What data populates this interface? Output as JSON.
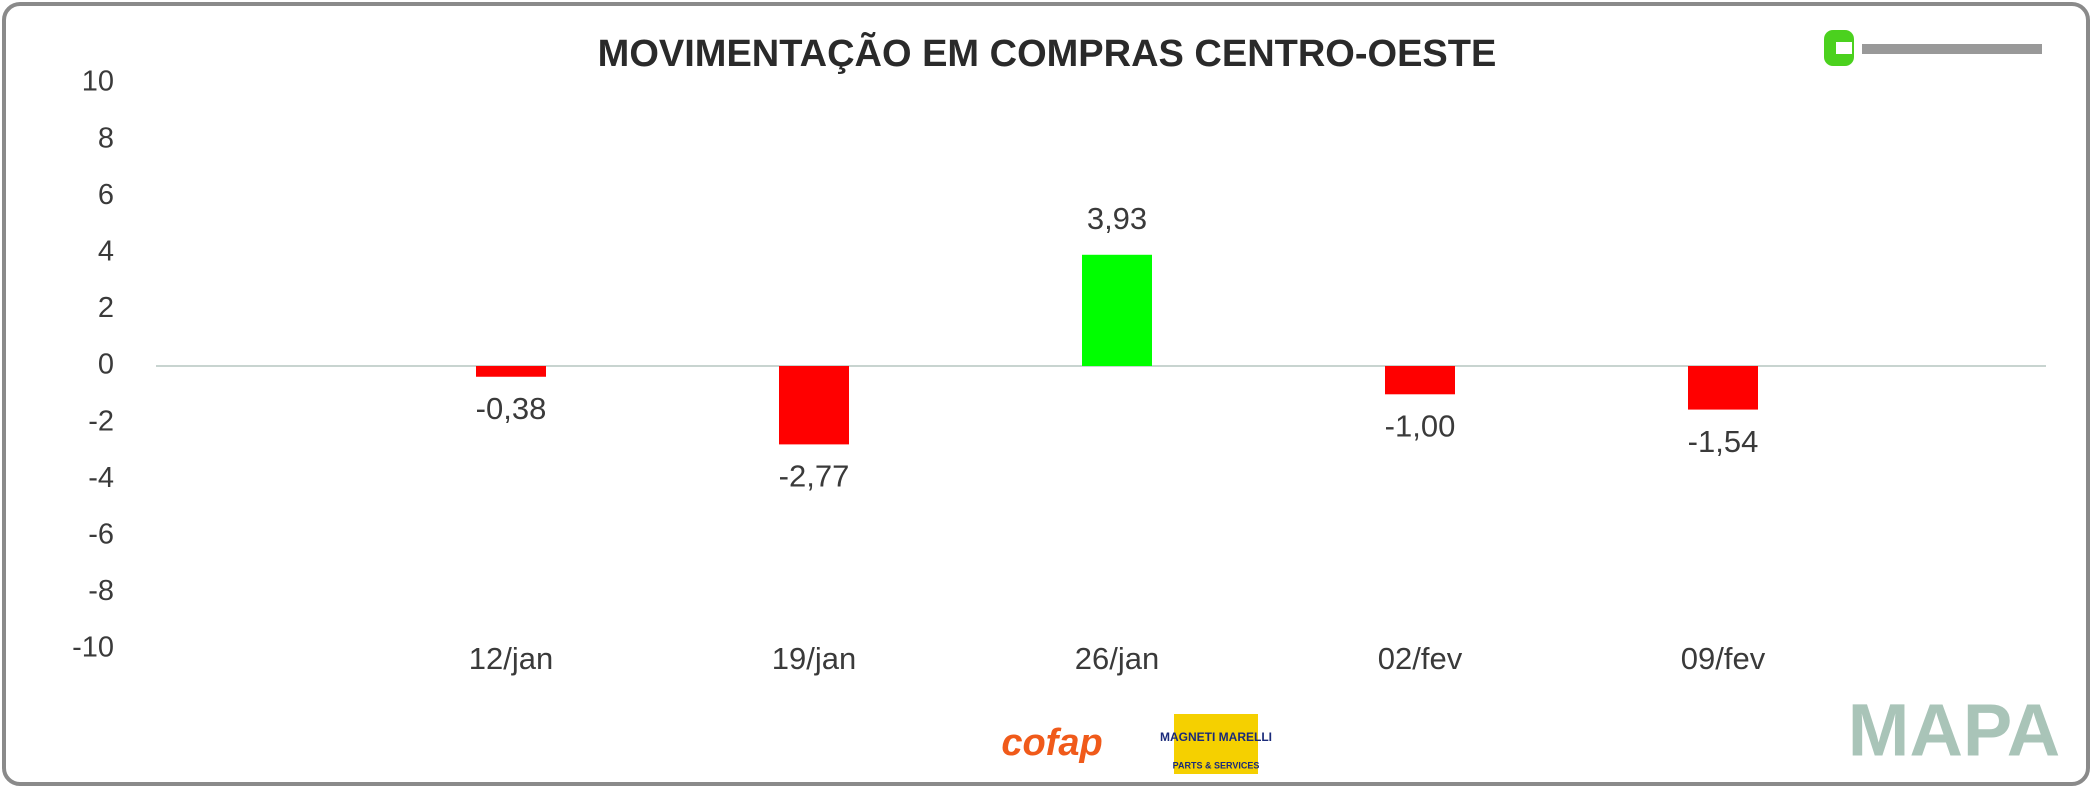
{
  "chart_data": {
    "type": "bar",
    "title": "MOVIMENTAÇÃO EM COMPRAS CENTRO-OESTE",
    "categories": [
      "12/jan",
      "19/jan",
      "26/jan",
      "02/fev",
      "09/fev"
    ],
    "values": [
      -0.38,
      -2.77,
      3.93,
      -1.0,
      -1.54
    ],
    "value_labels": [
      "-0,38",
      "-2,77",
      "3,93",
      "-1,00",
      "-1,54"
    ],
    "colors": [
      "#ff0000",
      "#ff0000",
      "#00ff00",
      "#ff0000",
      "#ff0000"
    ],
    "ylim": [
      -10,
      10
    ],
    "yticks": [
      -10,
      -8,
      -6,
      -4,
      -2,
      0,
      2,
      4,
      6,
      8,
      10
    ],
    "grid": false
  },
  "sponsors": {
    "cofap": "cofap",
    "magneti": "MAGNETI MARELLI",
    "magneti_sub": "PARTS & SERVICES",
    "mapa": "MAPA"
  }
}
